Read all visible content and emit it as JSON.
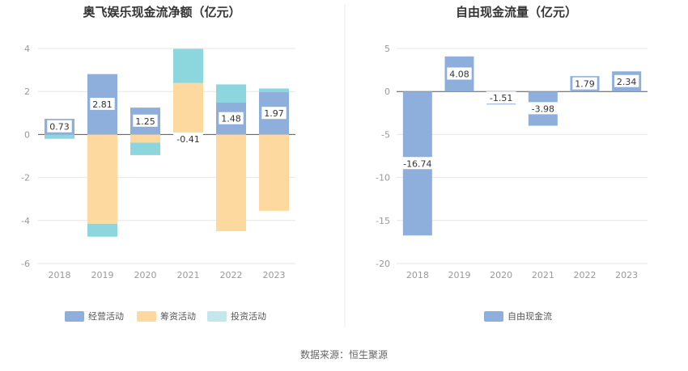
{
  "colors": {
    "operating": "#8eaedc",
    "financing": "#fdd9a0",
    "investing": "#8bd7dd",
    "investing_legend": "#c3e7ea",
    "grid": "#e6e6e6",
    "axis": "#555555",
    "divider": "#eeeeee"
  },
  "source": "数据来源：恒生聚源",
  "chart_data": [
    {
      "type": "bar",
      "stacked": true,
      "title": "奥飞娱乐现金流净额（亿元）",
      "categories": [
        "2018",
        "2019",
        "2020",
        "2021",
        "2022",
        "2023"
      ],
      "ylim": [
        -6,
        4
      ],
      "yticks": [
        "4",
        "2",
        "0",
        "-2",
        "-4",
        "-6"
      ],
      "grid": true,
      "legend_position": "bottom",
      "series": [
        {
          "name": "经营活动",
          "values": [
            0.73,
            2.81,
            1.25,
            -0.41,
            1.48,
            1.97
          ],
          "labels": [
            "0.73",
            "2.81",
            "1.25",
            "-0.41",
            "1.48",
            "1.97"
          ]
        },
        {
          "name": "筹资活动",
          "values": [
            0.0,
            -4.15,
            -0.38,
            2.4,
            -4.5,
            -3.55
          ]
        },
        {
          "name": "投资活动",
          "values": [
            -0.2,
            -0.6,
            -0.58,
            1.58,
            0.85,
            0.17
          ]
        }
      ]
    },
    {
      "type": "bar",
      "title": "自由现金流量（亿元）",
      "categories": [
        "2018",
        "2019",
        "2020",
        "2021",
        "2022",
        "2023"
      ],
      "ylim": [
        -20,
        5
      ],
      "yticks": [
        "5",
        "0",
        "-5",
        "-10",
        "-15",
        "-20"
      ],
      "grid": true,
      "legend_position": "bottom",
      "series": [
        {
          "name": "自由现金流",
          "values": [
            -16.74,
            4.08,
            -1.51,
            -3.98,
            1.79,
            2.34
          ],
          "labels": [
            "-16.74",
            "4.08",
            "-1.51",
            "-3.98",
            "1.79",
            "2.34"
          ]
        }
      ]
    }
  ]
}
